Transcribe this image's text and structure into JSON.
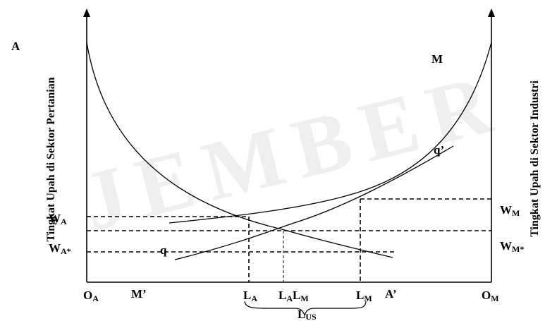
{
  "watermark": "JEMBER",
  "left_axis_label": "Tingkat Upah di Sektor Pertanian",
  "right_axis_label": "Tingkat Upah di Sektor Industri",
  "corner_labels": {
    "left_top": "A",
    "right_top": "M"
  },
  "curve_labels": {
    "q_prime": "q’",
    "q": "q"
  },
  "wage_labels": {
    "wa": {
      "main": "W",
      "sub": "A"
    },
    "wa_star": {
      "main": "W",
      "sub": "A*"
    },
    "wm": {
      "main": "W",
      "sub": "M"
    },
    "wm_star": {
      "main": "W",
      "sub": "M*"
    }
  },
  "bottom_labels": {
    "oa": {
      "main": "O",
      "sub": "A"
    },
    "m_prime": "M’",
    "la": {
      "main": "L",
      "sub": "A"
    },
    "lalm": {
      "m1": "L",
      "s1": "A",
      "m2": "L",
      "s2": "M"
    },
    "lm": {
      "main": "L",
      "sub": "M"
    },
    "a_prime": "A’",
    "om": {
      "main": "O",
      "sub": "M"
    },
    "lus": {
      "main": "L",
      "sub": "US"
    }
  }
}
